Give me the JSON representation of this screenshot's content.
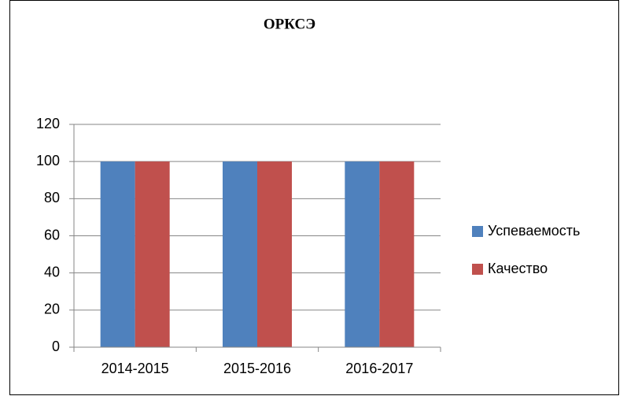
{
  "chart_data": {
    "type": "bar",
    "title": "ОРКСЭ",
    "categories": [
      "2014-2015",
      "2015-2016",
      "2016-2017"
    ],
    "series": [
      {
        "name": "Успеваемость",
        "color": "#4f81bd",
        "values": [
          100,
          100,
          100
        ]
      },
      {
        "name": "Качество",
        "color": "#c0504d",
        "values": [
          100,
          100,
          100
        ]
      }
    ],
    "ylim": [
      0,
      120
    ],
    "yticks": [
      0,
      20,
      40,
      60,
      80,
      100,
      120
    ],
    "grid": true,
    "legend": "right"
  }
}
